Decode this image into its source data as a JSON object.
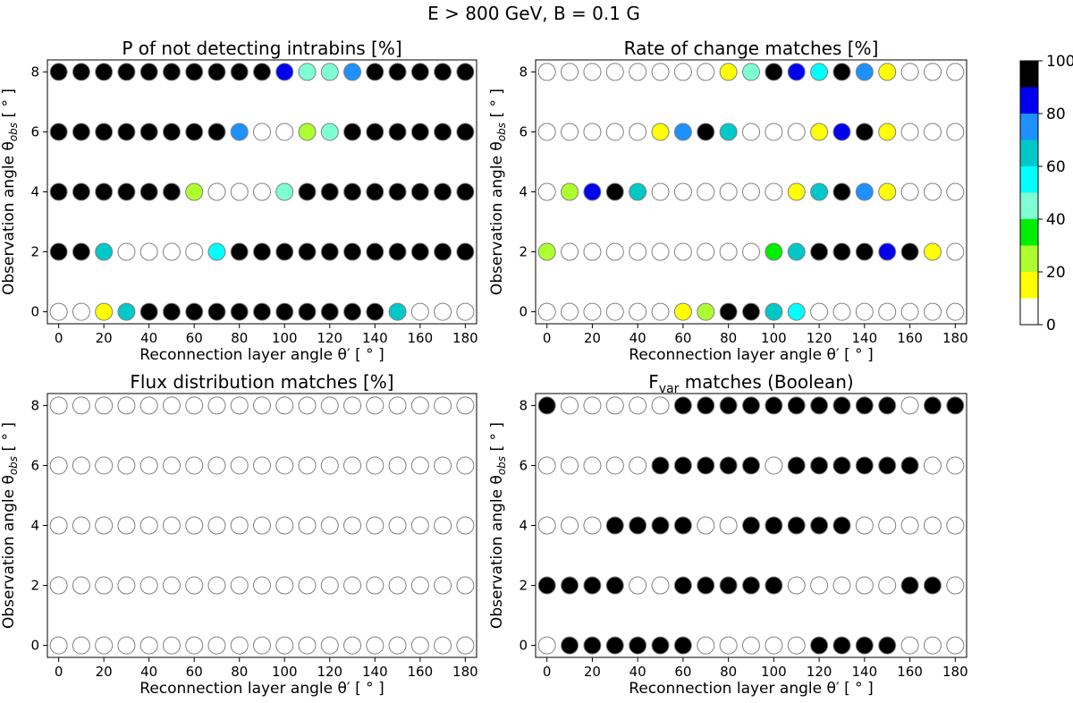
{
  "figure": {
    "title": "E > 800 GeV, B = 0.1 G"
  },
  "colorbar": {
    "ticks": [
      "0",
      "20",
      "40",
      "60",
      "80",
      "100"
    ],
    "bands": [
      {
        "from": 0,
        "to": 10,
        "color": "#ffffff"
      },
      {
        "from": 10,
        "to": 20,
        "color": "#ffff00"
      },
      {
        "from": 20,
        "to": 30,
        "color": "#adff2f"
      },
      {
        "from": 30,
        "to": 40,
        "color": "#00ee00"
      },
      {
        "from": 40,
        "to": 50,
        "color": "#7fffd4"
      },
      {
        "from": 50,
        "to": 60,
        "color": "#00ffff"
      },
      {
        "from": 60,
        "to": 70,
        "color": "#00c8c8"
      },
      {
        "from": 70,
        "to": 80,
        "color": "#1e90ff"
      },
      {
        "from": 80,
        "to": 90,
        "color": "#0000ee"
      },
      {
        "from": 90,
        "to": 100,
        "color": "#000000"
      }
    ]
  },
  "chart_data": [
    {
      "type": "scatter",
      "title": "P of not detecting intrabins [%]",
      "xlabel": "Reconnection layer angle θ′ [ ° ]",
      "ylabel": "Observation angle θobs [ ° ]",
      "x": [
        0,
        10,
        20,
        30,
        40,
        50,
        60,
        70,
        80,
        90,
        100,
        110,
        120,
        130,
        140,
        150,
        160,
        170,
        180
      ],
      "y": [
        0,
        2,
        4,
        6,
        8
      ],
      "x_ticks": [
        "0",
        "20",
        "40",
        "60",
        "80",
        "100",
        "120",
        "140",
        "160",
        "180"
      ],
      "y_ticks": [
        "0",
        "2",
        "4",
        "6",
        "8"
      ],
      "xlim": [
        -5,
        185
      ],
      "ylim": [
        -0.4,
        8.4
      ],
      "color_scale": "percent 0-100",
      "values": [
        [
          0,
          0,
          15,
          65,
          100,
          100,
          100,
          100,
          100,
          100,
          100,
          100,
          100,
          100,
          100,
          65,
          0,
          0,
          0
        ],
        [
          100,
          100,
          65,
          0,
          0,
          0,
          0,
          55,
          100,
          100,
          100,
          100,
          100,
          100,
          100,
          100,
          100,
          100,
          100
        ],
        [
          100,
          100,
          100,
          100,
          100,
          100,
          25,
          0,
          0,
          0,
          45,
          100,
          100,
          100,
          100,
          100,
          100,
          100,
          100
        ],
        [
          100,
          100,
          100,
          100,
          100,
          100,
          100,
          100,
          75,
          0,
          0,
          25,
          45,
          100,
          100,
          100,
          100,
          100,
          100
        ],
        [
          100,
          100,
          100,
          100,
          100,
          100,
          100,
          100,
          100,
          100,
          85,
          45,
          45,
          75,
          100,
          100,
          100,
          100,
          100
        ]
      ]
    },
    {
      "type": "scatter",
      "title": "Rate of change matches [%]",
      "xlabel": "Reconnection layer angle θ′ [ ° ]",
      "ylabel": "Observation angle θobs [ ° ]",
      "x": [
        0,
        10,
        20,
        30,
        40,
        50,
        60,
        70,
        80,
        90,
        100,
        110,
        120,
        130,
        140,
        150,
        160,
        170,
        180
      ],
      "y": [
        0,
        2,
        4,
        6,
        8
      ],
      "x_ticks": [
        "0",
        "20",
        "40",
        "60",
        "80",
        "100",
        "120",
        "140",
        "160",
        "180"
      ],
      "y_ticks": [
        "0",
        "2",
        "4",
        "6",
        "8"
      ],
      "xlim": [
        -5,
        185
      ],
      "ylim": [
        -0.4,
        8.4
      ],
      "color_scale": "percent 0-100",
      "values": [
        [
          0,
          0,
          0,
          0,
          0,
          0,
          15,
          25,
          100,
          100,
          65,
          55,
          0,
          0,
          0,
          0,
          0,
          0,
          0
        ],
        [
          25,
          0,
          0,
          0,
          0,
          0,
          0,
          0,
          0,
          0,
          35,
          65,
          100,
          100,
          100,
          85,
          100,
          15,
          0
        ],
        [
          0,
          25,
          85,
          100,
          65,
          0,
          0,
          0,
          0,
          0,
          0,
          15,
          65,
          100,
          75,
          15,
          0,
          0,
          0
        ],
        [
          0,
          0,
          0,
          0,
          0,
          15,
          75,
          100,
          65,
          0,
          0,
          0,
          15,
          85,
          100,
          15,
          0,
          0,
          0
        ],
        [
          0,
          0,
          0,
          0,
          0,
          0,
          0,
          0,
          15,
          45,
          100,
          85,
          55,
          100,
          75,
          15,
          0,
          0,
          0
        ]
      ]
    },
    {
      "type": "scatter",
      "title": "Flux distribution matches [%]",
      "xlabel": "Reconnection layer angle θ′ [ ° ]",
      "ylabel": "Observation angle θobs [ ° ]",
      "x": [
        0,
        10,
        20,
        30,
        40,
        50,
        60,
        70,
        80,
        90,
        100,
        110,
        120,
        130,
        140,
        150,
        160,
        170,
        180
      ],
      "y": [
        0,
        2,
        4,
        6,
        8
      ],
      "x_ticks": [
        "0",
        "20",
        "40",
        "60",
        "80",
        "100",
        "120",
        "140",
        "160",
        "180"
      ],
      "y_ticks": [
        "0",
        "2",
        "4",
        "6",
        "8"
      ],
      "xlim": [
        -5,
        185
      ],
      "ylim": [
        -0.4,
        8.4
      ],
      "color_scale": "percent 0-100",
      "values": [
        [
          0,
          0,
          0,
          0,
          0,
          0,
          0,
          0,
          0,
          0,
          0,
          0,
          0,
          0,
          0,
          0,
          0,
          0,
          0
        ],
        [
          0,
          0,
          0,
          0,
          0,
          0,
          0,
          0,
          0,
          0,
          0,
          0,
          0,
          0,
          0,
          0,
          0,
          0,
          0
        ],
        [
          0,
          0,
          0,
          0,
          0,
          0,
          0,
          0,
          0,
          0,
          0,
          0,
          0,
          0,
          0,
          0,
          0,
          0,
          0
        ],
        [
          0,
          0,
          0,
          0,
          0,
          0,
          0,
          0,
          0,
          0,
          0,
          0,
          0,
          0,
          0,
          0,
          0,
          0,
          0
        ],
        [
          0,
          0,
          0,
          0,
          0,
          0,
          0,
          0,
          0,
          0,
          0,
          0,
          0,
          0,
          0,
          0,
          0,
          0,
          0
        ]
      ]
    },
    {
      "type": "scatter",
      "title_main": "F",
      "title_sub": "var",
      "title_rest": " matches (Boolean)",
      "xlabel": "Reconnection layer angle θ′ [ ° ]",
      "ylabel": "Observation angle θobs [ ° ]",
      "x": [
        0,
        10,
        20,
        30,
        40,
        50,
        60,
        70,
        80,
        90,
        100,
        110,
        120,
        130,
        140,
        150,
        160,
        170,
        180
      ],
      "y": [
        0,
        2,
        4,
        6,
        8
      ],
      "x_ticks": [
        "0",
        "20",
        "40",
        "60",
        "80",
        "100",
        "120",
        "140",
        "160",
        "180"
      ],
      "y_ticks": [
        "0",
        "2",
        "4",
        "6",
        "8"
      ],
      "xlim": [
        -5,
        185
      ],
      "ylim": [
        -0.4,
        8.4
      ],
      "color_scale": "boolean (100 = true)",
      "values": [
        [
          0,
          100,
          100,
          100,
          100,
          100,
          100,
          0,
          0,
          0,
          0,
          0,
          100,
          100,
          100,
          100,
          0,
          0,
          0
        ],
        [
          100,
          100,
          100,
          100,
          0,
          0,
          100,
          100,
          100,
          100,
          100,
          0,
          0,
          0,
          0,
          0,
          100,
          100,
          0
        ],
        [
          0,
          0,
          0,
          100,
          100,
          100,
          100,
          0,
          0,
          100,
          100,
          100,
          100,
          100,
          0,
          0,
          0,
          0,
          0
        ],
        [
          0,
          0,
          0,
          0,
          0,
          100,
          100,
          100,
          100,
          100,
          0,
          100,
          100,
          100,
          100,
          100,
          100,
          0,
          0
        ],
        [
          100,
          0,
          0,
          0,
          0,
          0,
          100,
          100,
          100,
          100,
          100,
          100,
          100,
          100,
          100,
          100,
          0,
          100,
          100
        ]
      ]
    }
  ]
}
